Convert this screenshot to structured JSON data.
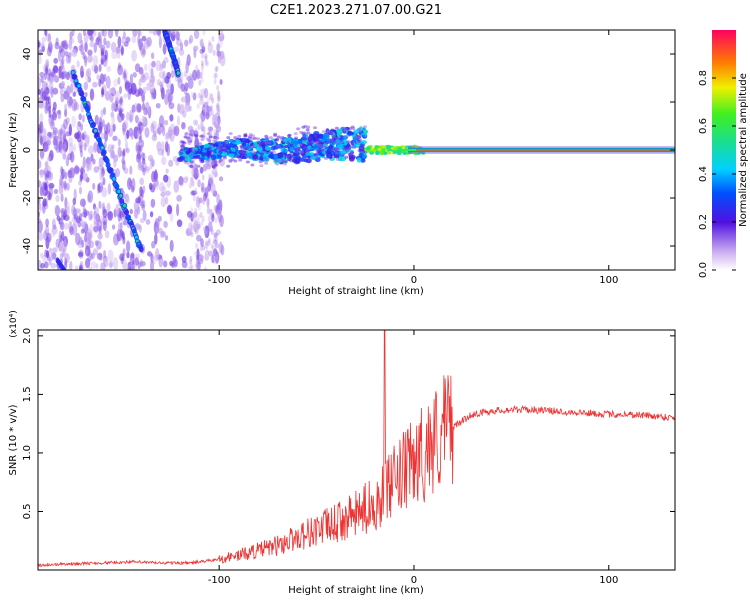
{
  "title": "C2E1.2023.271.07.00.G21",
  "chart_data": [
    {
      "type": "heatmap",
      "title": "C2E1.2023.271.07.00.G21",
      "xlabel": "Height of straight line (km)",
      "ylabel": "Frequency (Hz)",
      "xlim": [
        -193,
        134
      ],
      "ylim": [
        -50,
        50
      ],
      "xticks": [
        -100,
        0,
        100
      ],
      "yticks": [
        -40,
        -20,
        0,
        20,
        40
      ],
      "xtick_labels": [
        "-100",
        "0",
        "100"
      ],
      "ytick_labels": [
        "-40",
        "-20",
        "0",
        "20",
        "40"
      ],
      "colorbar": {
        "label": "Normalized spectral amplitude",
        "range": [
          0,
          1
        ],
        "ticks": [
          0.0,
          0.2,
          0.4,
          0.6,
          0.8
        ],
        "tick_labels": [
          "0.0",
          "0.2",
          "0.4",
          "0.6",
          "0.8"
        ]
      },
      "features": [
        {
          "name": "direct-signal-line",
          "x": [
            5,
            134
          ],
          "freq_hz": 0,
          "amplitude": 0.95
        },
        {
          "name": "transition-tail",
          "x": [
            -25,
            5
          ],
          "freq_hz": 0,
          "amplitude": 0.7
        },
        {
          "name": "scattered-band",
          "x": [
            -120,
            -25
          ],
          "freq_hz": [
            0,
            5
          ],
          "amplitude": 0.3
        },
        {
          "name": "diagonal-streak-1",
          "x": [
            -175,
            -140
          ],
          "freq_hz": [
            32,
            -42
          ],
          "amplitude": 0.3
        },
        {
          "name": "diagonal-streak-2",
          "x": [
            -128,
            -121
          ],
          "freq_hz": [
            50,
            32
          ],
          "amplitude": 0.3
        }
      ]
    },
    {
      "type": "line",
      "xlabel": "Height of straight line (km)",
      "ylabel": "SNR (10 * v/v)",
      "scale_label": "(x10⁴)",
      "xlim": [
        -193,
        134
      ],
      "ylim": [
        0,
        2.05
      ],
      "xticks": [
        -100,
        0,
        100
      ],
      "yticks": [
        0.5,
        1.0,
        1.5,
        2.0
      ],
      "xtick_labels": [
        "-100",
        "0",
        "100"
      ],
      "ytick_labels": [
        "0.5",
        "1.0",
        "1.5",
        "2.0"
      ],
      "series": [
        {
          "name": "SNR",
          "color": "#ee3333",
          "x": [
            -193,
            -180,
            -160,
            -145,
            -130,
            -115,
            -100,
            -90,
            -80,
            -70,
            -60,
            -50,
            -40,
            -30,
            -25,
            -20,
            -15,
            -12,
            -8,
            0,
            10,
            20,
            30,
            40,
            50,
            60,
            70,
            80,
            90,
            100,
            110,
            120,
            134
          ],
          "y": [
            0.04,
            0.05,
            0.06,
            0.07,
            0.06,
            0.06,
            0.09,
            0.12,
            0.16,
            0.2,
            0.27,
            0.33,
            0.38,
            0.45,
            0.5,
            0.55,
            0.62,
            0.68,
            0.75,
            0.88,
            1.05,
            1.22,
            1.33,
            1.36,
            1.37,
            1.37,
            1.36,
            1.35,
            1.34,
            1.33,
            1.33,
            1.32,
            1.3
          ],
          "spike": {
            "x": -15,
            "y": 2.05
          }
        }
      ]
    }
  ]
}
